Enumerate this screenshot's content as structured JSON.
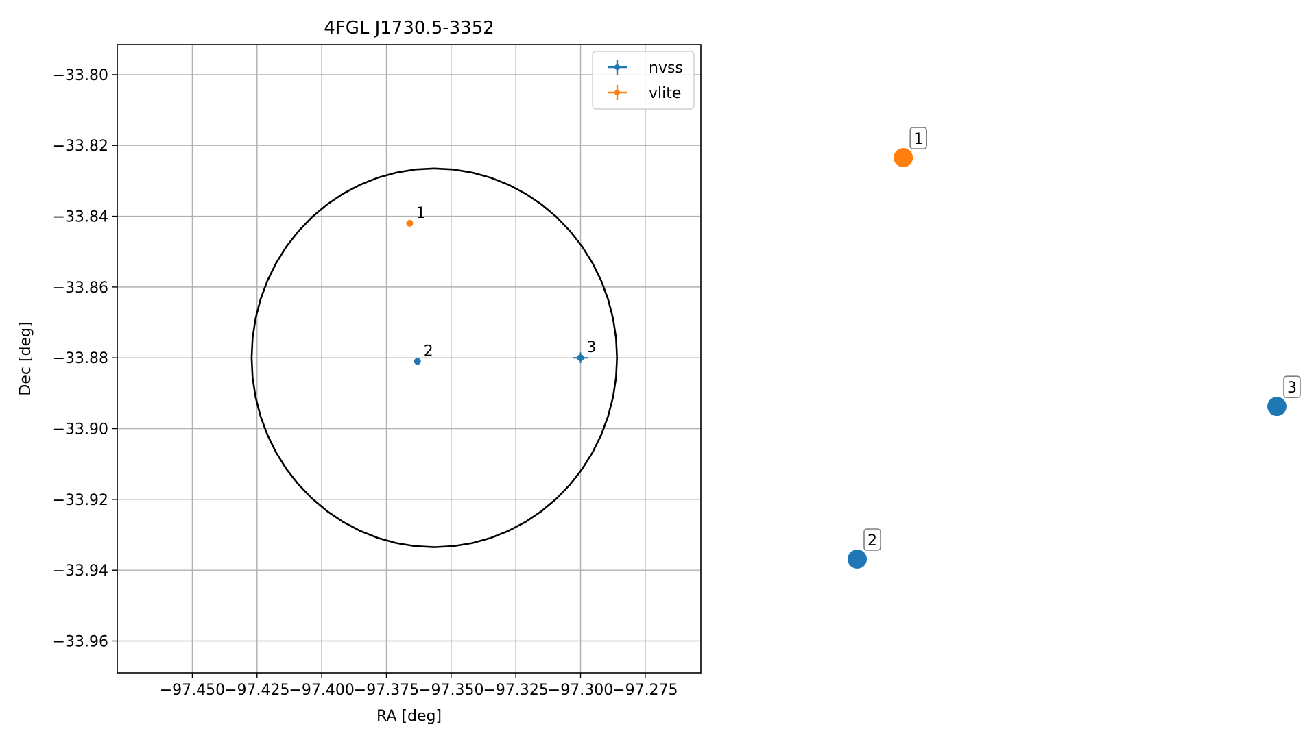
{
  "chart_data": [
    {
      "type": "scatter",
      "title": "4FGL J1730.5-3352",
      "xlabel": "RA [deg]",
      "ylabel": "Dec [deg]",
      "xlim": [
        -97.479,
        -97.2535
      ],
      "ylim": [
        -33.969,
        -33.7915
      ],
      "grid": true,
      "legend_position": "top-right",
      "x_ticks": [
        -97.45,
        -97.425,
        -97.4,
        -97.375,
        -97.35,
        -97.325,
        -97.3,
        -97.275
      ],
      "x_tick_labels": [
        "−97.450",
        "−97.425",
        "−97.400",
        "−97.375",
        "−97.350",
        "−97.325",
        "−97.300",
        "−97.275"
      ],
      "y_ticks": [
        -33.8,
        -33.82,
        -33.84,
        -33.86,
        -33.88,
        -33.9,
        -33.92,
        -33.94,
        -33.96
      ],
      "y_tick_labels": [
        "−33.80",
        "−33.82",
        "−33.84",
        "−33.86",
        "−33.88",
        "−33.90",
        "−33.92",
        "−33.94",
        "−33.96"
      ],
      "ellipse": {
        "center_x": -97.3565,
        "center_y": -33.88,
        "radius_x": 0.0706,
        "radius_y": 0.0535,
        "color": "#000000"
      },
      "series": [
        {
          "name": "nvss",
          "color": "#1f77b4",
          "points": [
            {
              "label": "2",
              "x": -97.363,
              "y": -33.881,
              "xerr": 0.0,
              "yerr": 0.0
            },
            {
              "label": "3",
              "x": -97.3,
              "y": -33.88,
              "xerr": 0.003,
              "yerr": 0.0015
            }
          ]
        },
        {
          "name": "vlite",
          "color": "#ff7f0e",
          "points": [
            {
              "label": "1",
              "x": -97.366,
              "y": -33.842,
              "xerr": 0.0,
              "yerr": 0.0
            }
          ]
        }
      ]
    },
    {
      "type": "scatter",
      "title": "",
      "axes_visible": false,
      "points": [
        {
          "label": "1",
          "color": "#ff7f0e",
          "x": 0.1098,
          "y": 0.8864
        },
        {
          "label": "2",
          "color": "#1f77b4",
          "x": 0.0,
          "y": 0.0
        },
        {
          "label": "3",
          "color": "#1f77b4",
          "x": 1.0,
          "y": 0.3371
        }
      ]
    }
  ]
}
